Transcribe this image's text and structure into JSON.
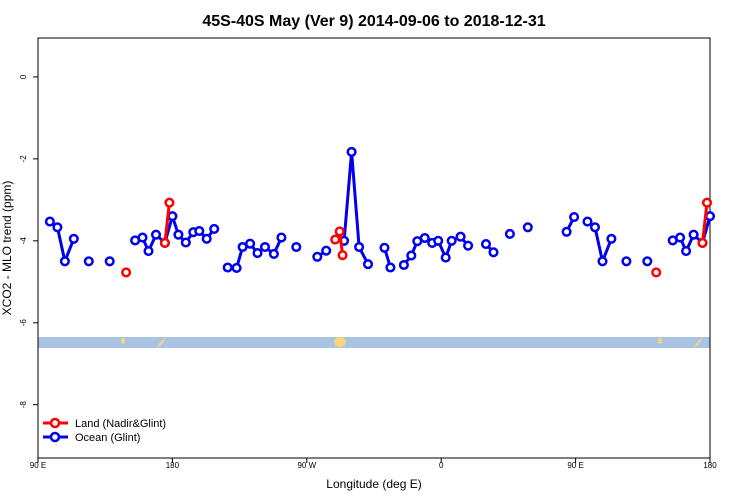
{
  "chart_data": {
    "type": "line",
    "title": "45S-40S May (Ver 9)   2014-09-06 to 2018-12-31",
    "xlabel": "Longitude (deg E)",
    "ylabel": "XCO2 - MLO trend (ppm)",
    "xlim": [
      90,
      540
    ],
    "ylim": [
      -9.3,
      0.95
    ],
    "x_ticks": [
      90,
      180,
      270,
      360,
      450,
      540
    ],
    "x_tick_labels": [
      "90 E",
      "180",
      "90 W",
      "0",
      "90 E",
      "180"
    ],
    "y_ticks": [
      -8,
      -6,
      -4,
      -2,
      0
    ],
    "y_tick_labels": [
      "-8",
      "-6",
      "-4",
      "-2",
      "0"
    ],
    "legend_position": "bottom-left",
    "colors": {
      "land": "#ff0000",
      "ocean": "#0000ee",
      "map_ocean": "#a9c4e3",
      "map_land": "#f7d77a"
    },
    "series": [
      {
        "name": "Land (Nadir&Glint)",
        "color": "#ff0000",
        "segments": [
          [
            [
              149,
              -4.77
            ]
          ],
          [
            [
              175,
              -4.05
            ],
            [
              178,
              -3.07
            ]
          ],
          [
            [
              289,
              -3.97
            ],
            [
              292,
              -3.77
            ],
            [
              294,
              -4.35
            ]
          ],
          [
            [
              504,
              -4.77
            ]
          ],
          [
            [
              535,
              -4.05
            ],
            [
              538,
              -3.07
            ]
          ]
        ]
      },
      {
        "name": "Ocean (Glint)",
        "color": "#0000ee",
        "segments": [
          [
            [
              98,
              -3.53
            ],
            [
              103,
              -3.67
            ],
            [
              108,
              -4.5
            ],
            [
              114,
              -3.95
            ]
          ],
          [
            [
              124,
              -4.5
            ]
          ],
          [
            [
              138,
              -4.5
            ]
          ],
          [
            [
              155,
              -3.99
            ],
            [
              160,
              -3.92
            ],
            [
              164,
              -4.25
            ],
            [
              169,
              -3.85
            ],
            [
              175,
              -4.05
            ],
            [
              180,
              -3.4
            ],
            [
              184,
              -3.85
            ],
            [
              189,
              -4.04
            ],
            [
              194,
              -3.79
            ],
            [
              198,
              -3.76
            ],
            [
              203,
              -3.95
            ],
            [
              208,
              -3.71
            ]
          ],
          [
            [
              217,
              -4.65
            ],
            [
              223,
              -4.66
            ],
            [
              227,
              -4.15
            ],
            [
              232,
              -4.07
            ],
            [
              237,
              -4.3
            ],
            [
              242,
              -4.15
            ],
            [
              248,
              -4.32
            ],
            [
              253,
              -3.92
            ]
          ],
          [
            [
              263,
              -4.15
            ]
          ],
          [
            [
              277,
              -4.39
            ],
            [
              283,
              -4.24
            ]
          ],
          [
            [
              295,
              -4.0
            ],
            [
              300,
              -1.83
            ],
            [
              305,
              -4.15
            ],
            [
              311,
              -4.57
            ]
          ],
          [
            [
              322,
              -4.17
            ],
            [
              326,
              -4.65
            ]
          ],
          [
            [
              335,
              -4.59
            ],
            [
              340,
              -4.36
            ],
            [
              344,
              -4.01
            ],
            [
              349,
              -3.93
            ],
            [
              354,
              -4.05
            ],
            [
              358,
              -4.0
            ],
            [
              363,
              -4.41
            ],
            [
              367,
              -4.0
            ],
            [
              373,
              -3.9
            ],
            [
              378,
              -4.12
            ]
          ],
          [
            [
              390,
              -4.08
            ],
            [
              395,
              -4.28
            ]
          ],
          [
            [
              406,
              -3.83
            ]
          ],
          [
            [
              418,
              -3.67
            ]
          ],
          [
            [
              444,
              -3.78
            ],
            [
              449,
              -3.42
            ]
          ],
          [
            [
              458,
              -3.53
            ],
            [
              463,
              -3.67
            ],
            [
              468,
              -4.5
            ],
            [
              474,
              -3.95
            ]
          ],
          [
            [
              484,
              -4.5
            ]
          ],
          [
            [
              498,
              -4.5
            ]
          ],
          [
            [
              515,
              -3.99
            ],
            [
              520,
              -3.92
            ],
            [
              524,
              -4.25
            ],
            [
              529,
              -3.85
            ],
            [
              535,
              -4.05
            ],
            [
              540,
              -3.4
            ]
          ]
        ]
      }
    ]
  }
}
